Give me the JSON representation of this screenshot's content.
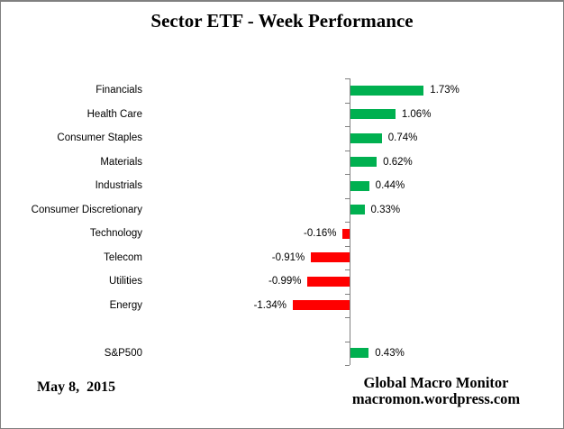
{
  "chart_data": {
    "type": "bar",
    "orientation": "horizontal",
    "title": "Sector ETF - Week Performance",
    "xlabel": "",
    "ylabel": "",
    "value_unit": "percent",
    "gridlines": false,
    "legend": "none",
    "axis_range_hint": [
      -1.5,
      2.0
    ],
    "rows": [
      {
        "label": "Financials",
        "value": 1.73,
        "display": "1.73%"
      },
      {
        "label": "Health Care",
        "value": 1.06,
        "display": "1.06%"
      },
      {
        "label": "Consumer Staples",
        "value": 0.74,
        "display": "0.74%"
      },
      {
        "label": "Materials",
        "value": 0.62,
        "display": "0.62%"
      },
      {
        "label": "Industrials",
        "value": 0.44,
        "display": "0.44%"
      },
      {
        "label": "Consumer Discretionary",
        "value": 0.33,
        "display": "0.33%"
      },
      {
        "label": "Technology",
        "value": -0.16,
        "display": "-0.16%"
      },
      {
        "label": "Telecom",
        "value": -0.91,
        "display": "-0.91%"
      },
      {
        "label": "Utilities",
        "value": -0.99,
        "display": "-0.99%"
      },
      {
        "label": "Energy",
        "value": -1.34,
        "display": "-1.34%"
      },
      {
        "label": "",
        "value": null,
        "display": ""
      },
      {
        "label": "S&P500",
        "value": 0.43,
        "display": "0.43%"
      }
    ],
    "colors": {
      "positive": "#00B050",
      "negative": "#FF0000",
      "axis": "#808080",
      "text": "#000000"
    }
  },
  "footer": {
    "date": "May 8,  2015",
    "credit_line1": "Global Macro Monitor",
    "credit_line2": "macromon.wordpress.com"
  }
}
